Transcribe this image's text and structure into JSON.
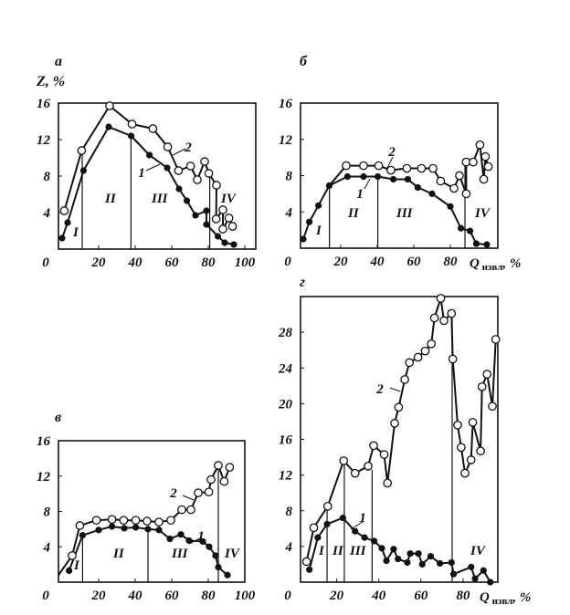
{
  "chart_data": [
    {
      "type": "line",
      "panel": "а",
      "ylabel": "Z, %",
      "xlabel": "",
      "xlim": [
        -2,
        106
      ],
      "ylim": [
        0,
        16
      ],
      "x_ticks": [
        0,
        20,
        40,
        60,
        80,
        100
      ],
      "y_ticks": [
        4,
        8,
        12,
        16
      ],
      "stage_boundaries": [
        11,
        37.7,
        80.8
      ],
      "stage_labels": [
        "I",
        "II",
        "III",
        "IV"
      ],
      "series": [
        {
          "name": "1",
          "marker": "filled",
          "points": [
            [
              0,
              1.2
            ],
            [
              3,
              2.9
            ],
            [
              11.7,
              8.6
            ],
            [
              25.5,
              13.4
            ],
            [
              37.8,
              12.4
            ],
            [
              47.8,
              10.3
            ],
            [
              57.5,
              8.9
            ],
            [
              64,
              6.6
            ],
            [
              68.3,
              5.3
            ],
            [
              73,
              3.7
            ],
            [
              79,
              4.2
            ],
            [
              79,
              2.7
            ],
            [
              85.3,
              1.4
            ],
            [
              89,
              0.7
            ],
            [
              94,
              0.5
            ]
          ]
        },
        {
          "name": "2",
          "marker": "open",
          "points": [
            [
              1.2,
              4.2
            ],
            [
              10.7,
              10.8
            ],
            [
              26,
              15.7
            ],
            [
              38.3,
              13.7
            ],
            [
              49.7,
              13.2
            ],
            [
              57.8,
              11.2
            ],
            [
              63.7,
              8.6
            ],
            [
              70.3,
              9.1
            ],
            [
              74,
              7.6
            ],
            [
              78,
              9.6
            ],
            [
              80.3,
              8.3
            ],
            [
              84.5,
              7.0
            ],
            [
              84.3,
              3.3
            ],
            [
              88,
              4.3
            ],
            [
              88,
              2.2
            ],
            [
              91.3,
              3.4
            ],
            [
              93.3,
              2.5
            ]
          ]
        }
      ]
    },
    {
      "type": "line",
      "panel": "б",
      "xlabel": "Q извл, %",
      "xlabel_main": "Q",
      "xlabel_sub": "извл",
      "xlabel_unit": ", %",
      "xlim": [
        -2,
        106
      ],
      "ylim": [
        0,
        16
      ],
      "x_ticks": [
        0,
        20,
        40,
        60,
        80
      ],
      "y_ticks": [
        4,
        8,
        12,
        16
      ],
      "stage_boundaries": [
        13.8,
        40.3,
        88
      ],
      "stage_labels": [
        "I",
        "II",
        "III",
        "IV"
      ],
      "series": [
        {
          "name": "1",
          "marker": "filled",
          "points": [
            [
              -0.5,
              1.0
            ],
            [
              2.8,
              2.9
            ],
            [
              7.8,
              4.7
            ],
            [
              13.7,
              6.9
            ],
            [
              23.7,
              7.9
            ],
            [
              32.5,
              7.9
            ],
            [
              40.3,
              7.9
            ],
            [
              48.8,
              7.6
            ],
            [
              56.7,
              7.6
            ],
            [
              62.2,
              6.7
            ],
            [
              70,
              6.0
            ],
            [
              80,
              4.6
            ],
            [
              85.8,
              2.2
            ],
            [
              90.8,
              1.9
            ],
            [
              94.2,
              0.5
            ],
            [
              100,
              0.4
            ]
          ]
        },
        {
          "name": "2",
          "marker": "open",
          "points": [
            [
              13.7,
              6.9
            ],
            [
              23,
              9.1
            ],
            [
              32.5,
              9.1
            ],
            [
              40.8,
              9.1
            ],
            [
              47.5,
              8.6
            ],
            [
              56.2,
              8.8
            ],
            [
              64.2,
              8.8
            ],
            [
              70.5,
              8.8
            ],
            [
              74.7,
              7.4
            ],
            [
              82,
              6.6
            ],
            [
              85,
              8.0
            ],
            [
              88.7,
              6.0
            ],
            [
              88.7,
              9.5
            ],
            [
              92.5,
              9.5
            ],
            [
              96.2,
              11.4
            ],
            [
              98.3,
              7.6
            ],
            [
              99.2,
              10.1
            ],
            [
              100.8,
              9.0
            ]
          ]
        }
      ]
    },
    {
      "type": "line",
      "panel": "в",
      "xlabel": "",
      "xlim": [
        -2,
        100
      ],
      "ylim": [
        0,
        16
      ],
      "x_ticks": [
        0,
        20,
        40,
        60,
        80,
        100
      ],
      "y_ticks": [
        4,
        8,
        12,
        16
      ],
      "stage_boundaries": [
        11.2,
        47,
        85.5
      ],
      "stage_labels": [
        "I",
        "II",
        "III",
        "IV"
      ],
      "series": [
        {
          "name": "1",
          "marker": "filled",
          "points": [
            [
              3.8,
              1.3
            ],
            [
              11.2,
              5.3
            ],
            [
              20,
              5.9
            ],
            [
              27.3,
              6.3
            ],
            [
              34,
              6.1
            ],
            [
              40.3,
              6.2
            ],
            [
              47,
              6.0
            ],
            [
              53,
              5.9
            ],
            [
              59,
              4.9
            ],
            [
              65,
              5.4
            ],
            [
              69.5,
              4.7
            ],
            [
              77,
              4.6
            ],
            [
              80.5,
              4.0
            ],
            [
              84,
              3.0
            ],
            [
              85.5,
              1.7
            ],
            [
              90.5,
              0.8
            ]
          ]
        },
        {
          "name": "2",
          "marker": "open",
          "points": [
            [
              -2,
              0.8
            ],
            [
              5.5,
              3.0
            ],
            [
              9.7,
              6.4
            ],
            [
              18.8,
              7.0
            ],
            [
              27.3,
              7.1
            ],
            [
              33.7,
              7.0
            ],
            [
              40.3,
              7.0
            ],
            [
              46.5,
              6.9
            ],
            [
              53,
              6.8
            ],
            [
              59.5,
              7.0
            ],
            [
              65.5,
              8.2
            ],
            [
              70.5,
              8.2
            ],
            [
              74.5,
              10.1
            ],
            [
              80.3,
              10.2
            ],
            [
              81.5,
              11.6
            ],
            [
              85.5,
              13.2
            ],
            [
              88.7,
              11.4
            ],
            [
              91.7,
              13.0
            ]
          ]
        }
      ]
    },
    {
      "type": "line",
      "panel": "г",
      "xlabel": "Q извл, %",
      "xlabel_main": "Q",
      "xlabel_sub": "извл",
      "xlabel_unit": ", %",
      "xlim": [
        2.8,
        96.5
      ],
      "ylim": [
        0,
        32
      ],
      "x_ticks": [
        0,
        20,
        40,
        60,
        80
      ],
      "y_ticks": [
        4,
        8,
        12,
        16,
        20,
        24,
        28
      ],
      "stage_boundaries": [
        15.4,
        23.6,
        36.8,
        74.8
      ],
      "stage_labels": [
        "I",
        "II",
        "III",
        "IV"
      ],
      "series": [
        {
          "name": "1",
          "marker": "filled",
          "points": [
            [
              7,
              1.4
            ],
            [
              11,
              5.0
            ],
            [
              15.4,
              6.5
            ],
            [
              22.9,
              7.2
            ],
            [
              28.7,
              5.7
            ],
            [
              33.2,
              5.0
            ],
            [
              37.8,
              4.6
            ],
            [
              41.4,
              3.8
            ],
            [
              43.6,
              2.4
            ],
            [
              47,
              3.7
            ],
            [
              49.1,
              2.6
            ],
            [
              53.5,
              2.2
            ],
            [
              54.9,
              3.2
            ],
            [
              58.8,
              3.2
            ],
            [
              60.6,
              2.0
            ],
            [
              64.6,
              2.9
            ],
            [
              69,
              2.1
            ],
            [
              74.5,
              2.2
            ],
            [
              75.5,
              0.9
            ],
            [
              83.8,
              1.7
            ],
            [
              85.7,
              0.4
            ],
            [
              89.7,
              1.3
            ],
            [
              92.9,
              0
            ]
          ]
        },
        {
          "name": "2",
          "marker": "open",
          "points": [
            [
              5.7,
              2.3
            ],
            [
              9.1,
              6.1
            ],
            [
              15.7,
              8.5
            ],
            [
              23.3,
              13.6
            ],
            [
              28.7,
              12.2
            ],
            [
              34.9,
              13.0
            ],
            [
              37.5,
              15.3
            ],
            [
              42.5,
              14.3
            ],
            [
              44.1,
              11.1
            ],
            [
              47.5,
              17.8
            ],
            [
              49.4,
              19.6
            ],
            [
              52.3,
              22.7
            ],
            [
              54.5,
              24.6
            ],
            [
              58.6,
              25.2
            ],
            [
              62,
              25.9
            ],
            [
              64.9,
              26.7
            ],
            [
              66.4,
              29.6
            ],
            [
              69.4,
              31.8
            ],
            [
              70.9,
              29.3
            ],
            [
              74.5,
              30.1
            ],
            [
              75.1,
              25.0
            ],
            [
              77.4,
              17.6
            ],
            [
              79.1,
              15.1
            ],
            [
              80.9,
              12.2
            ],
            [
              83.8,
              13.7
            ],
            [
              84.6,
              17.9
            ],
            [
              88.3,
              14.7
            ],
            [
              89,
              21.9
            ],
            [
              91.4,
              23.3
            ],
            [
              93.9,
              19.7
            ],
            [
              95.5,
              27.2
            ]
          ]
        }
      ]
    }
  ]
}
